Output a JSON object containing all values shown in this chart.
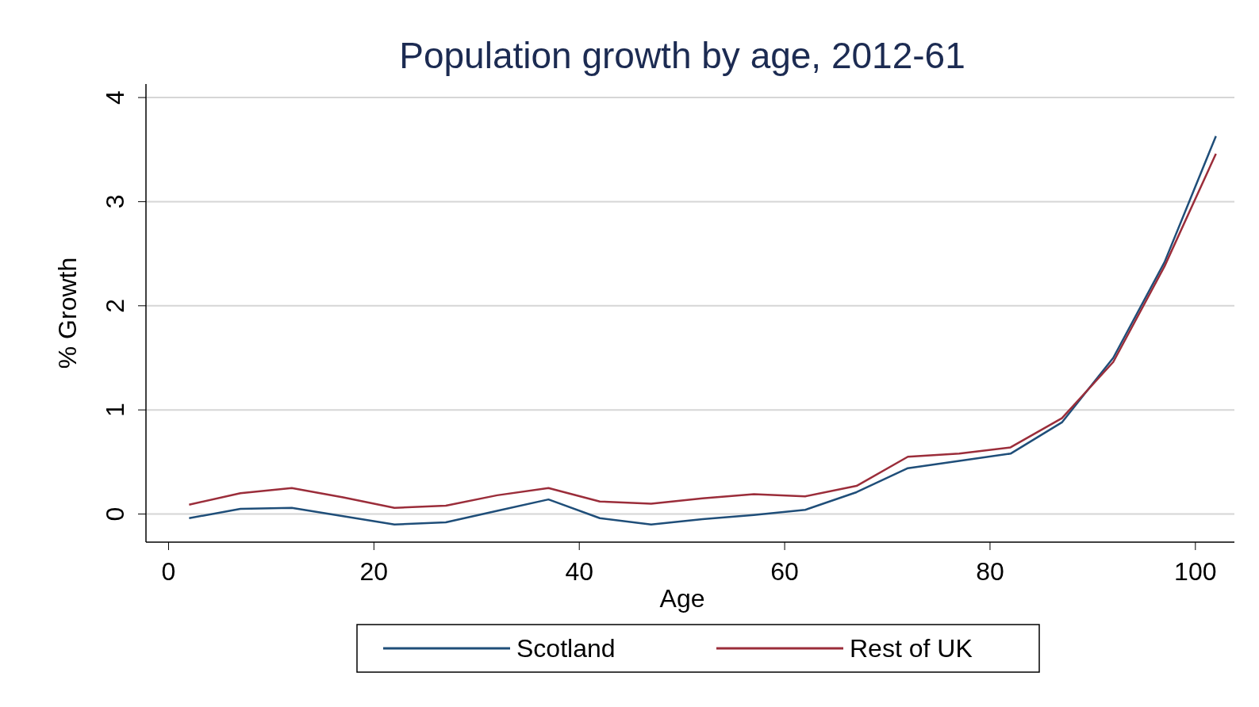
{
  "chart_data": {
    "type": "line",
    "title": "Population growth by age, 2012-61",
    "xlabel": "Age",
    "ylabel": "% Growth",
    "x": [
      2,
      7,
      12,
      17,
      22,
      27,
      32,
      37,
      42,
      47,
      52,
      57,
      62,
      67,
      72,
      77,
      82,
      87,
      92,
      97,
      102
    ],
    "series": [
      {
        "name": "Scotland",
        "color": "#1f4e79",
        "values": [
          -0.04,
          0.05,
          0.06,
          -0.02,
          -0.1,
          -0.08,
          0.03,
          0.14,
          -0.04,
          -0.1,
          -0.05,
          -0.01,
          0.04,
          0.21,
          0.44,
          0.51,
          0.58,
          0.88,
          1.5,
          2.42,
          3.63
        ]
      },
      {
        "name": "Rest of UK",
        "color": "#9b2d3a",
        "values": [
          0.09,
          0.2,
          0.25,
          0.16,
          0.06,
          0.08,
          0.18,
          0.25,
          0.12,
          0.1,
          0.15,
          0.19,
          0.17,
          0.27,
          0.55,
          0.58,
          0.64,
          0.92,
          1.46,
          2.38,
          3.46
        ]
      }
    ],
    "xlim": [
      -2.2,
      103.8
    ],
    "ylim": [
      -0.27,
      4.13
    ],
    "xticks": [
      0,
      20,
      40,
      60,
      80,
      100
    ],
    "yticks": [
      0,
      1,
      2,
      3,
      4
    ],
    "grid": "y",
    "legend": "bottom",
    "marker": "none",
    "line_style": "solid"
  }
}
